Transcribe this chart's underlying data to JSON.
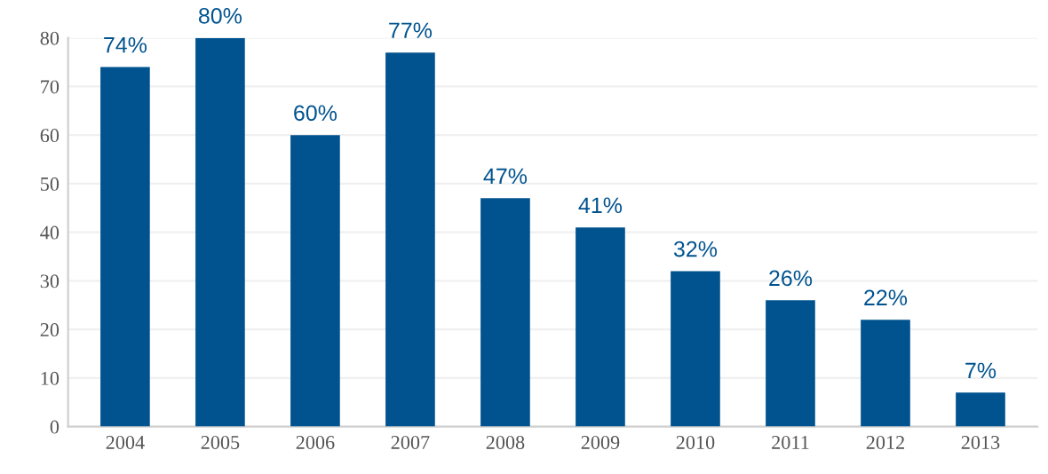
{
  "chart_data": {
    "type": "bar",
    "categories": [
      "2004",
      "2005",
      "2006",
      "2007",
      "2008",
      "2009",
      "2010",
      "2011",
      "2012",
      "2013"
    ],
    "values": [
      74,
      80,
      60,
      77,
      47,
      41,
      32,
      26,
      22,
      7
    ],
    "value_labels": [
      "74%",
      "80%",
      "60%",
      "77%",
      "47%",
      "41%",
      "32%",
      "26%",
      "22%",
      "7%"
    ],
    "color": "#00538f",
    "ylim": [
      0,
      80
    ],
    "yticks": [
      0,
      10,
      20,
      30,
      40,
      50,
      60,
      70,
      80
    ],
    "grid": "y"
  }
}
